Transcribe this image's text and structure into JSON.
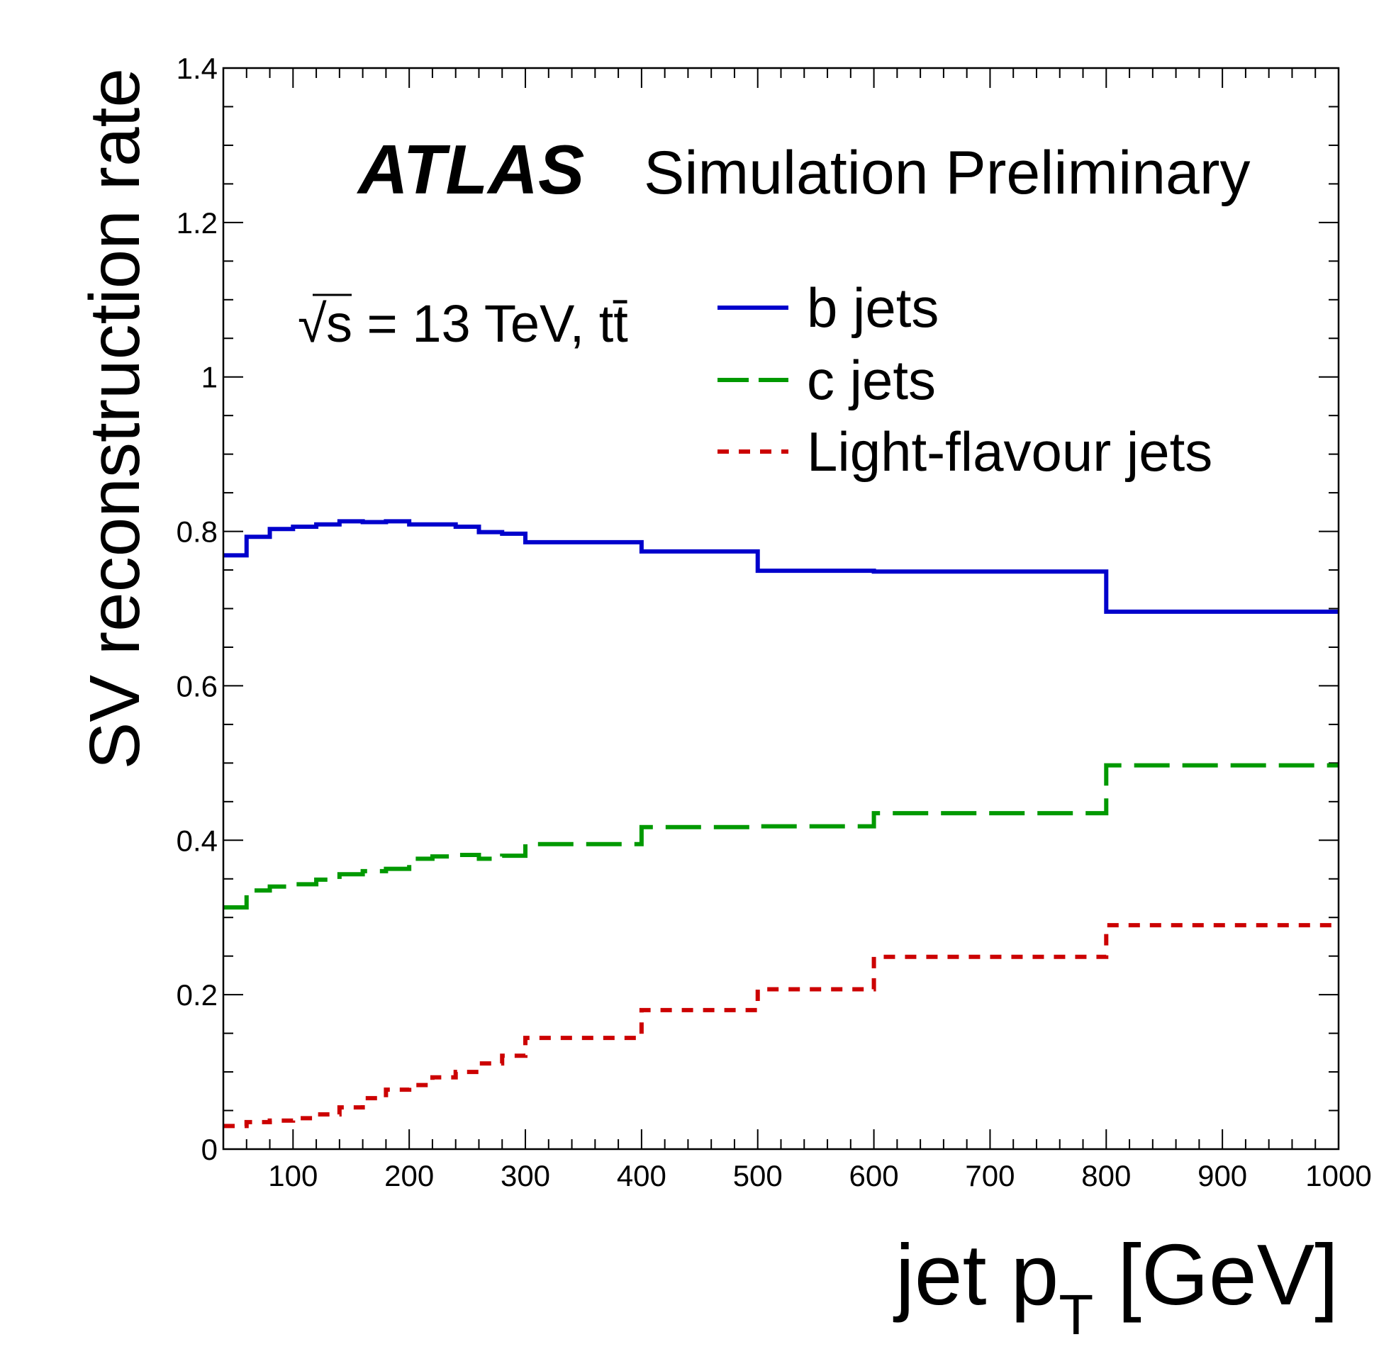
{
  "chart_data": {
    "type": "line",
    "step": true,
    "title": "",
    "experiment": "ATLAS",
    "label": "Simulation Preliminary",
    "annotation": {
      "sqrt_symbol": "√",
      "text": "s = 13 TeV, tt̄"
    },
    "xlabel": "jet p",
    "xlabel_sub": "T",
    "xlabel_unit": " [GeV]",
    "ylabel": "SV reconstruction rate",
    "xlim": [
      40,
      1000
    ],
    "ylim": [
      0,
      1.4
    ],
    "x_ticks": [
      100,
      200,
      300,
      400,
      500,
      600,
      700,
      800,
      900,
      1000
    ],
    "x_tick_labels": [
      "100",
      "200",
      "300",
      "400",
      "500",
      "600",
      "700",
      "800",
      "900",
      "1000"
    ],
    "y_ticks": [
      0,
      0.2,
      0.4,
      0.6,
      0.8,
      1,
      1.2,
      1.4
    ],
    "y_tick_labels": [
      "0",
      "0.2",
      "0.4",
      "0.6",
      "0.8",
      "1",
      "1.2",
      "1.4"
    ],
    "legend_placement": "top-right",
    "bin_edges": [
      40,
      60,
      80,
      100,
      120,
      140,
      160,
      180,
      200,
      220,
      240,
      260,
      280,
      300,
      400,
      500,
      600,
      800,
      1000
    ],
    "series": [
      {
        "name": "b jets",
        "color": "#0000cc",
        "dash": "solid",
        "values": [
          0.769,
          0.793,
          0.803,
          0.806,
          0.809,
          0.813,
          0.812,
          0.813,
          0.809,
          0.809,
          0.806,
          0.799,
          0.797,
          0.786,
          0.774,
          0.749,
          0.748,
          0.696
        ]
      },
      {
        "name": "c jets",
        "color": "#009900",
        "dash": "long-dash",
        "values": [
          0.313,
          0.335,
          0.34,
          0.343,
          0.349,
          0.356,
          0.36,
          0.363,
          0.376,
          0.379,
          0.381,
          0.376,
          0.38,
          0.395,
          0.417,
          0.418,
          0.435,
          0.497
        ]
      },
      {
        "name": "Light-flavour jets",
        "color": "#cc0000",
        "dash": "short-dash",
        "values": [
          0.03,
          0.035,
          0.037,
          0.04,
          0.045,
          0.054,
          0.066,
          0.077,
          0.083,
          0.093,
          0.1,
          0.111,
          0.121,
          0.144,
          0.18,
          0.207,
          0.249,
          0.29
        ]
      }
    ]
  }
}
